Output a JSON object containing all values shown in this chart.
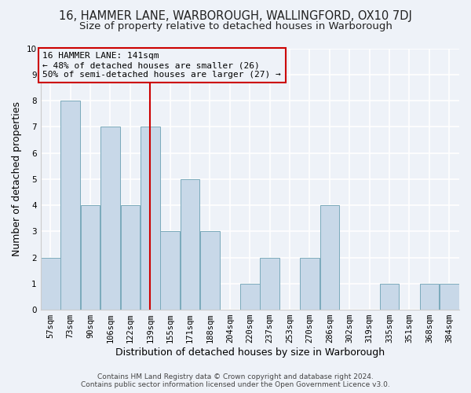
{
  "title": "16, HAMMER LANE, WARBOROUGH, WALLINGFORD, OX10 7DJ",
  "subtitle": "Size of property relative to detached houses in Warborough",
  "xlabel": "Distribution of detached houses by size in Warborough",
  "ylabel": "Number of detached properties",
  "categories": [
    "57sqm",
    "73sqm",
    "90sqm",
    "106sqm",
    "122sqm",
    "139sqm",
    "155sqm",
    "171sqm",
    "188sqm",
    "204sqm",
    "220sqm",
    "237sqm",
    "253sqm",
    "270sqm",
    "286sqm",
    "302sqm",
    "319sqm",
    "335sqm",
    "351sqm",
    "368sqm",
    "384sqm"
  ],
  "values": [
    2,
    8,
    4,
    7,
    4,
    7,
    3,
    5,
    3,
    0,
    1,
    2,
    0,
    2,
    4,
    0,
    0,
    1,
    0,
    1,
    1
  ],
  "bar_color": "#c8d8e8",
  "bar_edge_color": "#7aaabb",
  "highlight_index": 5,
  "highlight_color": "#cc0000",
  "ylim": [
    0,
    10
  ],
  "yticks": [
    0,
    1,
    2,
    3,
    4,
    5,
    6,
    7,
    8,
    9,
    10
  ],
  "annotation_text": "16 HAMMER LANE: 141sqm\n← 48% of detached houses are smaller (26)\n50% of semi-detached houses are larger (27) →",
  "annotation_box_color": "#cc0000",
  "footer_line1": "Contains HM Land Registry data © Crown copyright and database right 2024.",
  "footer_line2": "Contains public sector information licensed under the Open Government Licence v3.0.",
  "background_color": "#eef2f8",
  "grid_color": "#ffffff",
  "title_fontsize": 10.5,
  "subtitle_fontsize": 9.5,
  "tick_fontsize": 7.5,
  "ylabel_fontsize": 9,
  "xlabel_fontsize": 9
}
